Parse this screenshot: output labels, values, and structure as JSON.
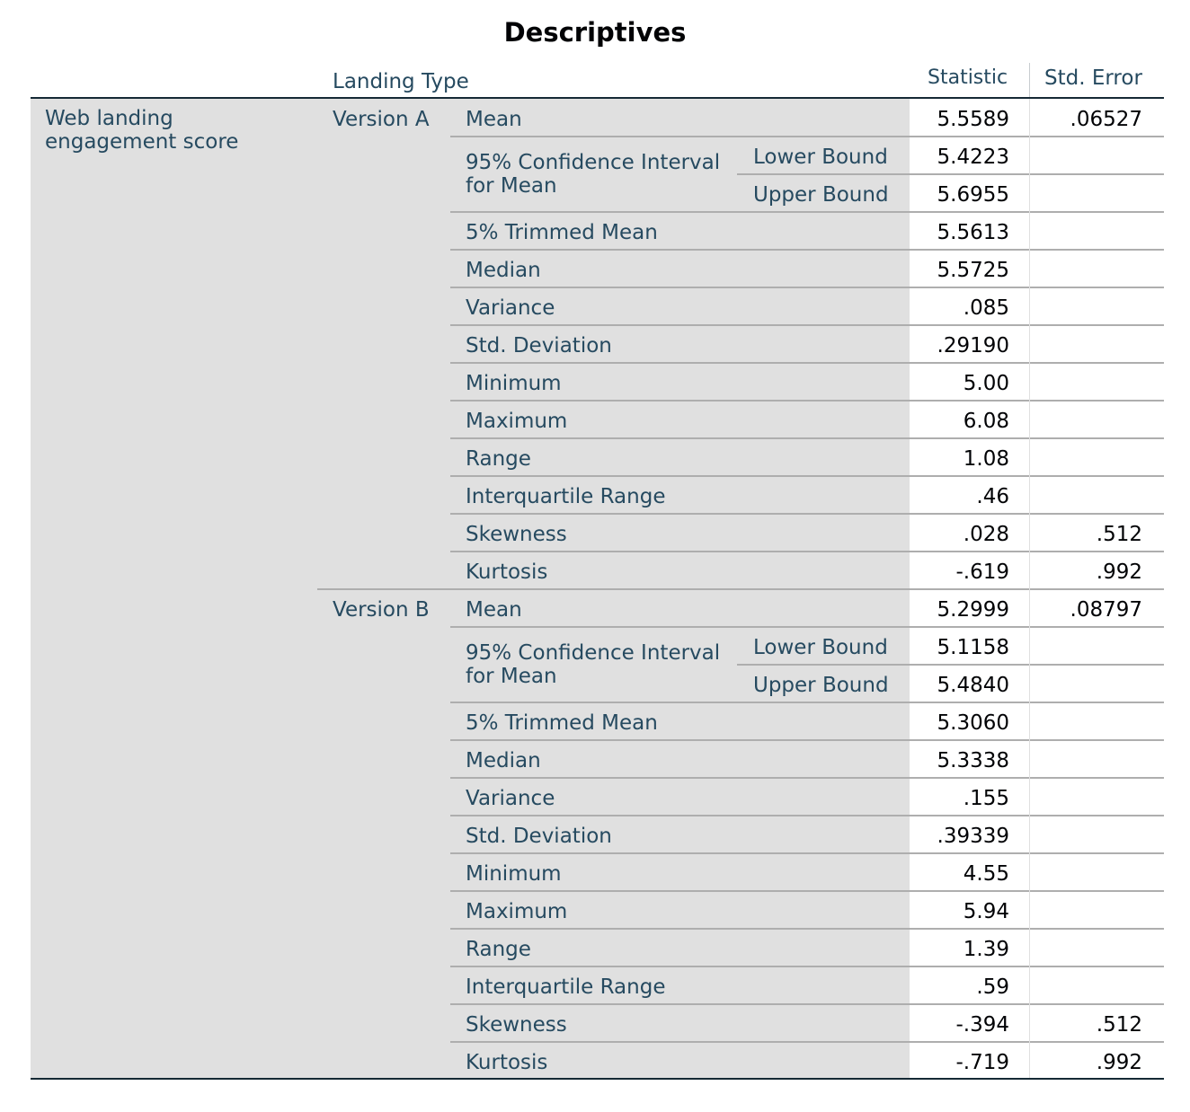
{
  "title": "Descriptives",
  "header": {
    "factor_label": "Landing Type",
    "col_statistic": "Statistic",
    "col_std_error": "Std. Error"
  },
  "dependent_variable": "Web landing engagement score",
  "ci_label_line1": "95% Confidence Interval",
  "ci_label_line2": "for Mean",
  "groups": [
    {
      "name": "Version A",
      "rows": [
        {
          "label": "Mean",
          "sub": "",
          "statistic": "5.5589",
          "std_error": ".06527"
        },
        {
          "label": "95% Confidence Interval for Mean",
          "sub": "Lower Bound",
          "statistic": "5.4223",
          "std_error": ""
        },
        {
          "label": "",
          "sub": "Upper Bound",
          "statistic": "5.6955",
          "std_error": ""
        },
        {
          "label": "5% Trimmed Mean",
          "sub": "",
          "statistic": "5.5613",
          "std_error": ""
        },
        {
          "label": "Median",
          "sub": "",
          "statistic": "5.5725",
          "std_error": ""
        },
        {
          "label": "Variance",
          "sub": "",
          "statistic": ".085",
          "std_error": ""
        },
        {
          "label": "Std. Deviation",
          "sub": "",
          "statistic": ".29190",
          "std_error": ""
        },
        {
          "label": "Minimum",
          "sub": "",
          "statistic": "5.00",
          "std_error": ""
        },
        {
          "label": "Maximum",
          "sub": "",
          "statistic": "6.08",
          "std_error": ""
        },
        {
          "label": "Range",
          "sub": "",
          "statistic": "1.08",
          "std_error": ""
        },
        {
          "label": "Interquartile Range",
          "sub": "",
          "statistic": ".46",
          "std_error": ""
        },
        {
          "label": "Skewness",
          "sub": "",
          "statistic": ".028",
          "std_error": ".512"
        },
        {
          "label": "Kurtosis",
          "sub": "",
          "statistic": "-.619",
          "std_error": ".992"
        }
      ]
    },
    {
      "name": "Version B",
      "rows": [
        {
          "label": "Mean",
          "sub": "",
          "statistic": "5.2999",
          "std_error": ".08797"
        },
        {
          "label": "95% Confidence Interval for Mean",
          "sub": "Lower Bound",
          "statistic": "5.1158",
          "std_error": ""
        },
        {
          "label": "",
          "sub": "Upper Bound",
          "statistic": "5.4840",
          "std_error": ""
        },
        {
          "label": "5% Trimmed Mean",
          "sub": "",
          "statistic": "5.3060",
          "std_error": ""
        },
        {
          "label": "Median",
          "sub": "",
          "statistic": "5.3338",
          "std_error": ""
        },
        {
          "label": "Variance",
          "sub": "",
          "statistic": ".155",
          "std_error": ""
        },
        {
          "label": "Std. Deviation",
          "sub": "",
          "statistic": ".39339",
          "std_error": ""
        },
        {
          "label": "Minimum",
          "sub": "",
          "statistic": "4.55",
          "std_error": ""
        },
        {
          "label": "Maximum",
          "sub": "",
          "statistic": "5.94",
          "std_error": ""
        },
        {
          "label": "Range",
          "sub": "",
          "statistic": "1.39",
          "std_error": ""
        },
        {
          "label": "Interquartile Range",
          "sub": "",
          "statistic": ".59",
          "std_error": ""
        },
        {
          "label": "Skewness",
          "sub": "",
          "statistic": "-.394",
          "std_error": ".512"
        },
        {
          "label": "Kurtosis",
          "sub": "",
          "statistic": "-.719",
          "std_error": ".992"
        }
      ]
    }
  ],
  "colors": {
    "header_text": "#264a60",
    "value_text": "#010205",
    "label_background": "#e0e0e0",
    "rule": "#152935",
    "row_line": "#aeaeae"
  }
}
